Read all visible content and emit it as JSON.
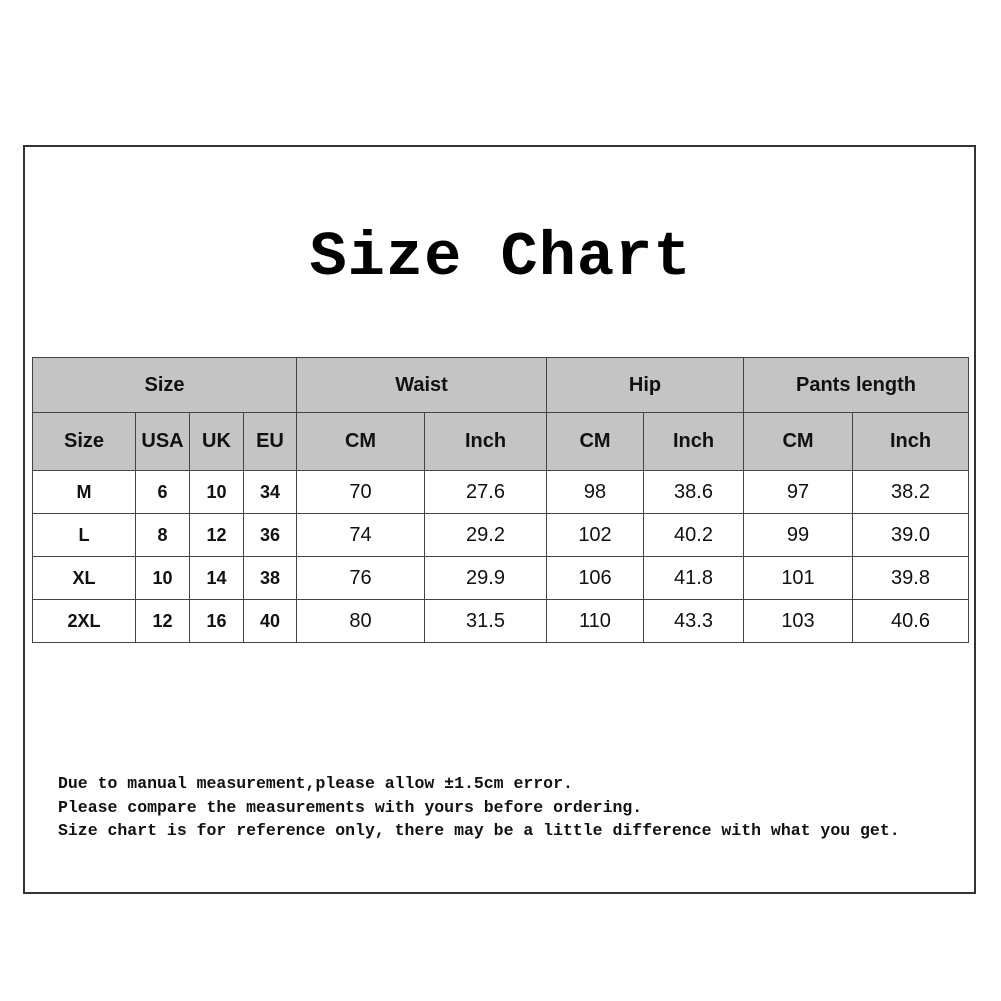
{
  "title": "Size Chart",
  "table": {
    "group_headers": [
      "Size",
      "Waist",
      "Hip",
      "Pants length"
    ],
    "sub_headers": [
      "Size",
      "USA",
      "UK",
      "EU",
      "CM",
      "Inch",
      "CM",
      "Inch",
      "CM",
      "Inch"
    ],
    "rows": [
      [
        "M",
        "6",
        "10",
        "34",
        "70",
        "27.6",
        "98",
        "38.6",
        "97",
        "38.2"
      ],
      [
        "L",
        "8",
        "12",
        "36",
        "74",
        "29.2",
        "102",
        "40.2",
        "99",
        "39.0"
      ],
      [
        "XL",
        "10",
        "14",
        "38",
        "76",
        "29.9",
        "106",
        "41.8",
        "101",
        "39.8"
      ],
      [
        "2XL",
        "12",
        "16",
        "40",
        "80",
        "31.5",
        "110",
        "43.3",
        "103",
        "40.6"
      ]
    ]
  },
  "notes": [
    "Due to manual measurement,please allow ±1.5cm error.",
    "Please compare the measurements with yours before ordering.",
    "Size chart is for reference only, there may be a little difference with what you get."
  ],
  "colors": {
    "header_bg": "#c4c4c4",
    "border": "#444444"
  }
}
